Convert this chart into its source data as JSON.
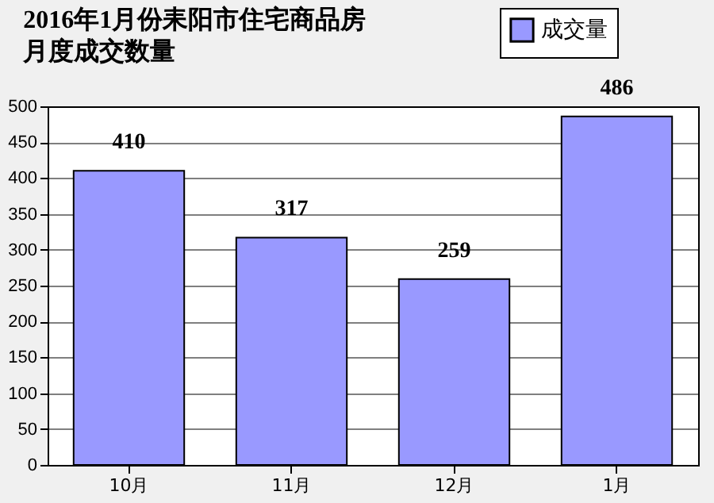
{
  "chart_data": {
    "type": "bar",
    "title": "2016年1月份耒阳市住宅商品房月度成交数量",
    "categories": [
      "10月",
      "11月",
      "12月",
      "1月"
    ],
    "series": [
      {
        "name": "成交量",
        "color": "#9999ff",
        "values": [
          410,
          317,
          259,
          486
        ]
      }
    ],
    "ylim": [
      0,
      500
    ],
    "yticks": [
      0,
      50,
      100,
      150,
      200,
      250,
      300,
      350,
      400,
      450,
      500
    ],
    "grid": "y",
    "legend": "top right",
    "data_labels": true
  }
}
